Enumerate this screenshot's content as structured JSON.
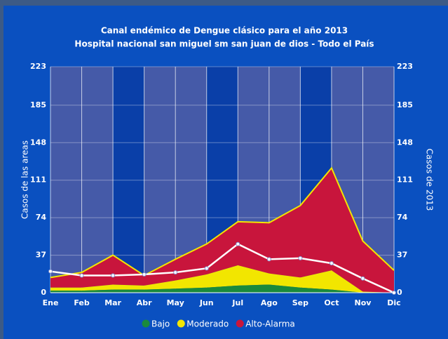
{
  "chart_data": {
    "type": "stacked_area",
    "title": "Canal endémico de Dengue clásico para el año 2013",
    "subtitle": "Hospital nacional san miguel  sm san juan de dios - Todo el País",
    "y_label": "Casos de las areas",
    "y2_label": "Casos de 2013",
    "categories": [
      "Ene",
      "Feb",
      "Mar",
      "Abr",
      "May",
      "Jun",
      "Jul",
      "Ago",
      "Sep",
      "Oct",
      "Nov",
      "Dic"
    ],
    "series": [
      {
        "name": "Bajo",
        "color": "#1a8a3c",
        "values": [
          2,
          2,
          3,
          3,
          4,
          5,
          7,
          8,
          5,
          3,
          0,
          0
        ]
      },
      {
        "name": "Moderado",
        "color": "#f2e600",
        "values": [
          3,
          3,
          5,
          4,
          8,
          13,
          20,
          11,
          10,
          19,
          1,
          0
        ]
      },
      {
        "name": "Alto-Alarma",
        "color": "#c8153c",
        "values": [
          10,
          15,
          29,
          10,
          21,
          30,
          43,
          50,
          71,
          101,
          50,
          22
        ]
      },
      {
        "name": "Casos de 2013",
        "color": "#ffffff",
        "axis": "y2",
        "values": [
          21,
          17,
          17,
          18,
          20,
          24,
          48,
          33,
          34,
          29,
          14,
          0
        ]
      }
    ],
    "ylim": [
      0,
      223
    ],
    "yticks": [
      0,
      37,
      74,
      111,
      148,
      185,
      223
    ],
    "y2lim": [
      0,
      223
    ],
    "y2ticks": [
      0,
      37,
      74,
      111,
      148,
      185,
      223
    ],
    "grid": true
  }
}
